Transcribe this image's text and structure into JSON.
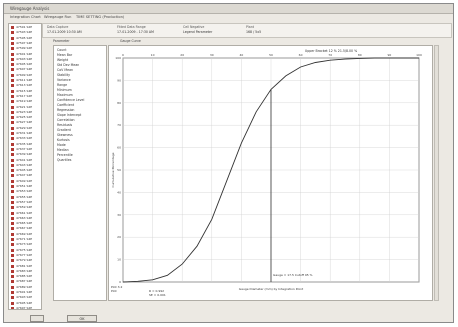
{
  "window": {
    "title": "Wiregauge Analysis"
  },
  "tabs": [
    {
      "label": "Integration Chart"
    },
    {
      "label": "Wiregauge Run"
    },
    {
      "label": "TIME SETTING (Production)"
    }
  ],
  "info": [
    {
      "label": "Data Capture",
      "value": "17-01-2009 10:30 AM"
    },
    {
      "label": "Fitted Data Range",
      "value": "17-01-2009 - 17:30 AM"
    },
    {
      "label": "Cell Negative",
      "value": "Legend Parameter"
    },
    {
      "label": "Plant",
      "value": "168 / 5x5"
    }
  ],
  "left_items": [
    "47591 S2E",
    "47593 S4E",
    "47595 S2E",
    "47597 S4E",
    "47599 S2E",
    "47601 S4E",
    "47603 S4E",
    "47605 S2E",
    "47607 S4E",
    "47609 S2E",
    "47611 S4E",
    "47613 S2E",
    "47615 S4E",
    "47617 S2E",
    "47619 S4E",
    "47621 S2E",
    "47623 S4E",
    "47625 S2E",
    "47627 S4E",
    "47629 S2E",
    "47631 S4E",
    "47633 S2E",
    "47635 S4E",
    "47637 S2E",
    "47639 S4E",
    "47641 S2E",
    "47643 S4E",
    "47645 S2E",
    "47647 S4E",
    "47649 S2E",
    "47651 S4E",
    "47653 S2E",
    "47655 S4E",
    "47657 S2E",
    "47659 S4E",
    "47661 S2E",
    "47663 S4E",
    "47665 S2E",
    "47667 S4E",
    "47669 S2E",
    "47671 S4E",
    "47673 S2E",
    "47675 S4E",
    "47677 S2E",
    "47679 S4E",
    "47681 S2E",
    "47683 S4E",
    "47685 S2E",
    "47687 S4E",
    "47689 S2E",
    "47691 S4E",
    "47693 S2E",
    "47695 S4E",
    "47697 S2E"
  ],
  "param_tab_label": "Parameter",
  "params": [
    "Count",
    "Mean Bar",
    "Weight",
    "Std Dev Mean",
    "CoV Mean",
    "Stability",
    "Variance",
    "Range",
    "Minimum",
    "Maximum",
    "Confidence Level",
    "Coefficient",
    "Regression",
    "Slope Intercept",
    "Correlation",
    "Residuals",
    "Gradient",
    "Skewness",
    "Kurtosis",
    "Mode",
    "Median",
    "Percentile",
    "Quartiles"
  ],
  "chart_tab_label": "Gauge Curve",
  "chart_data": {
    "type": "line",
    "title": "Upper Bracket 12 % 21.5/8.00 %",
    "ylabel": "Cumulative Percentage",
    "xlabel": "Gauge Diameter (mm) by Integration Point",
    "xlim": [
      0,
      100
    ],
    "ylim": [
      0,
      100
    ],
    "grid": true,
    "x": [
      0,
      5,
      10,
      15,
      20,
      25,
      30,
      35,
      40,
      45,
      50,
      55,
      60,
      65,
      70,
      75,
      80,
      85,
      90,
      95,
      100
    ],
    "values": [
      0,
      0.3,
      1,
      3,
      8,
      16,
      28,
      45,
      62,
      76,
      86,
      92,
      96,
      98,
      99,
      99.5,
      99.8,
      100,
      100,
      100,
      100
    ],
    "marker_x": 50,
    "marker_label": "Gauge = 17.5 Cutoff 95 %",
    "footer_left": "Plot 3.2\nPlot",
    "footer_mid": "R = 0.992\nSE = 0.001"
  },
  "bottom": {
    "ok_label": "OK"
  }
}
